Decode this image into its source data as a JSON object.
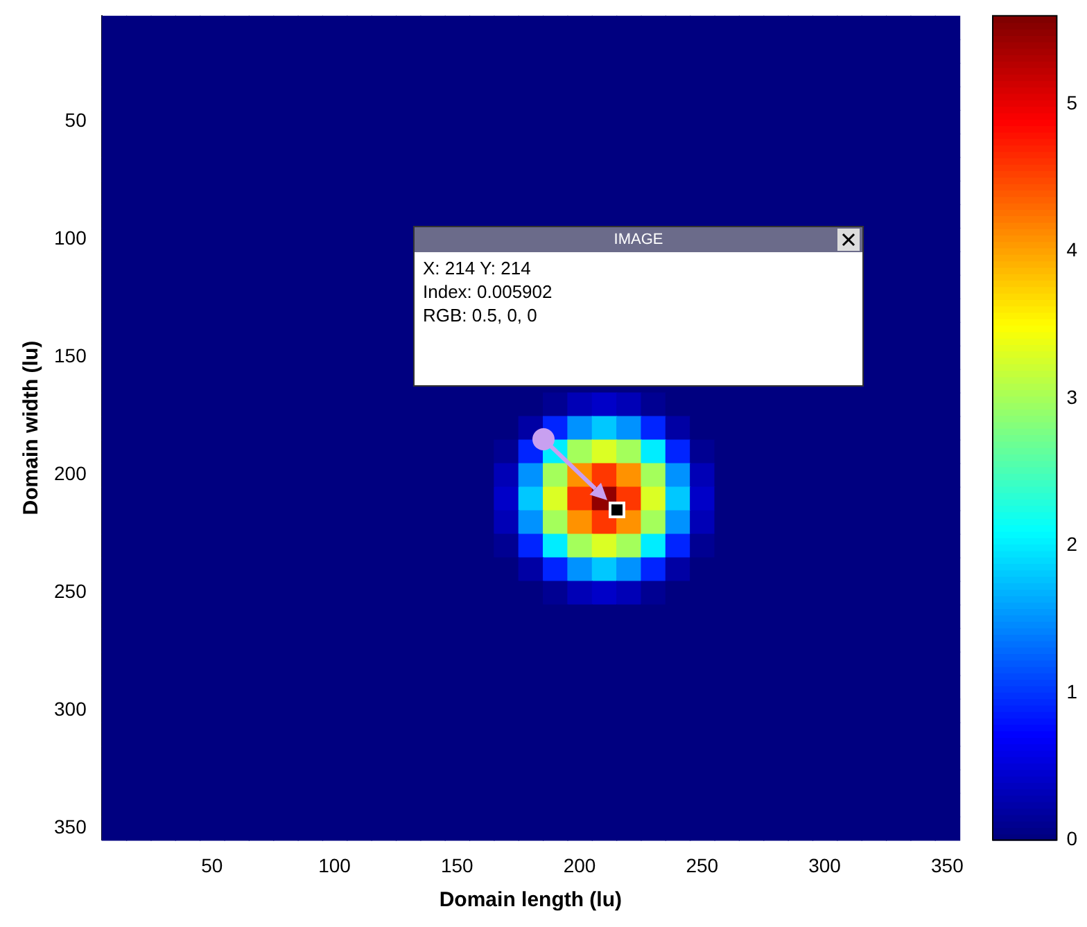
{
  "chart_data": {
    "type": "heatmap",
    "xlabel": "Domain length (lu)",
    "ylabel": "Domain width (lu)",
    "categories": [
      null,
      null,
      null,
      null,
      "50",
      null,
      null,
      null,
      null,
      "100",
      null,
      null,
      null,
      null,
      "150",
      null,
      null,
      null,
      null,
      "200",
      null,
      null,
      null,
      null,
      "250",
      null,
      null,
      null,
      null,
      "300",
      null,
      null,
      null,
      null,
      "350"
    ],
    "y_categories": [
      null,
      null,
      null,
      null,
      "50",
      null,
      null,
      null,
      null,
      "100",
      null,
      null,
      null,
      null,
      "150",
      null,
      null,
      null,
      null,
      "200",
      null,
      null,
      null,
      null,
      "250",
      null,
      null,
      null,
      null,
      "300",
      null,
      null,
      null,
      null,
      "350"
    ],
    "clim": [
      0,
      5.6
    ],
    "cticks": [
      0,
      1,
      2,
      3,
      4,
      5
    ],
    "cells": [
      [
        0,
        0,
        0,
        0,
        0,
        0,
        0,
        0,
        0,
        0,
        0,
        0,
        0,
        0,
        0,
        0,
        0,
        0,
        0,
        0,
        0,
        0,
        0,
        0,
        0,
        0,
        0,
        0,
        0,
        0,
        0,
        0,
        0,
        0,
        0
      ],
      [
        0,
        0,
        0,
        0,
        0,
        0,
        0,
        0,
        0,
        0,
        0,
        0,
        0,
        0,
        0,
        0,
        0,
        0,
        0,
        0,
        0,
        0,
        0,
        0,
        0,
        0,
        0,
        0,
        0,
        0,
        0,
        0,
        0,
        0,
        0
      ],
      [
        0,
        0,
        0,
        0,
        0,
        0,
        0,
        0,
        0,
        0,
        0,
        0,
        0,
        0,
        0,
        0,
        0,
        0,
        0,
        0,
        0,
        0,
        0,
        0,
        0,
        0,
        0,
        0,
        0,
        0,
        0,
        0,
        0,
        0,
        0
      ],
      [
        0,
        0,
        0,
        0,
        0,
        0,
        0,
        0,
        0,
        0,
        0,
        0,
        0,
        0,
        0,
        0,
        0,
        0,
        0,
        0,
        0,
        0,
        0,
        0,
        0,
        0,
        0,
        0,
        0,
        0,
        0,
        0,
        0,
        0,
        0
      ],
      [
        0,
        0,
        0,
        0,
        0,
        0,
        0,
        0,
        0,
        0,
        0,
        0,
        0,
        0,
        0,
        0,
        0,
        0,
        0,
        0,
        0,
        0,
        0,
        0,
        0,
        0,
        0,
        0,
        0,
        0,
        0,
        0,
        0,
        0,
        0
      ],
      [
        0,
        0,
        0,
        0,
        0,
        0,
        0,
        0,
        0,
        0,
        0,
        0,
        0,
        0,
        0,
        0,
        0,
        0,
        0,
        0,
        0,
        0,
        0,
        0,
        0,
        0,
        0,
        0,
        0,
        0,
        0,
        0,
        0,
        0,
        0
      ],
      [
        0,
        0,
        0,
        0,
        0,
        0,
        0,
        0,
        0,
        0,
        0,
        0,
        0,
        0,
        0,
        0,
        0,
        0,
        0,
        0,
        0,
        0,
        0,
        0,
        0,
        0,
        0,
        0,
        0,
        0,
        0,
        0,
        0,
        0,
        0
      ],
      [
        0,
        0,
        0,
        0,
        0,
        0,
        0,
        0,
        0,
        0,
        0,
        0,
        0,
        0,
        0,
        0,
        0,
        0,
        0,
        0,
        0,
        0,
        0,
        0,
        0,
        0,
        0,
        0,
        0,
        0,
        0,
        0,
        0,
        0,
        0
      ],
      [
        0,
        0,
        0,
        0,
        0,
        0,
        0,
        0,
        0,
        0,
        0,
        0,
        0,
        0,
        0,
        0,
        0,
        0,
        0,
        0,
        0,
        0,
        0,
        0,
        0,
        0,
        0,
        0,
        0,
        0,
        0,
        0,
        0,
        0,
        0
      ],
      [
        0,
        0,
        0,
        0,
        0,
        0,
        0,
        0,
        0,
        0,
        0,
        0,
        0,
        null,
        null,
        null,
        null,
        null,
        null,
        null,
        null,
        null,
        null,
        null,
        null,
        null,
        null,
        null,
        null,
        null,
        null,
        0,
        0,
        0,
        0
      ],
      [
        0,
        0,
        0,
        0,
        0,
        0,
        0,
        0,
        0,
        0,
        0,
        0,
        0,
        null,
        null,
        null,
        null,
        null,
        null,
        null,
        null,
        null,
        null,
        null,
        null,
        null,
        null,
        null,
        null,
        null,
        null,
        0,
        0,
        0,
        0
      ],
      [
        0,
        0,
        0,
        0,
        0,
        0,
        0,
        0,
        0,
        0,
        0,
        0,
        0,
        null,
        null,
        null,
        null,
        null,
        null,
        null,
        null,
        null,
        null,
        null,
        null,
        null,
        null,
        null,
        null,
        null,
        null,
        0,
        0,
        0,
        0
      ],
      [
        0,
        0,
        0,
        0,
        0,
        0,
        0,
        0,
        0,
        0,
        0,
        0,
        0,
        null,
        null,
        null,
        null,
        null,
        null,
        null,
        null,
        null,
        null,
        null,
        null,
        null,
        null,
        null,
        null,
        null,
        null,
        0,
        0,
        0,
        0
      ],
      [
        0,
        0,
        0,
        0,
        0,
        0,
        0,
        0,
        0,
        0,
        0,
        0,
        0,
        null,
        null,
        null,
        null,
        null,
        null,
        null,
        null,
        null,
        null,
        null,
        null,
        null,
        null,
        null,
        null,
        null,
        null,
        0,
        0,
        0,
        0
      ],
      [
        0,
        0,
        0,
        0,
        0,
        0,
        0,
        0,
        0,
        0,
        0,
        0,
        0,
        null,
        null,
        null,
        null,
        null,
        null,
        null,
        null,
        null,
        null,
        null,
        null,
        null,
        null,
        null,
        null,
        null,
        null,
        0,
        0,
        0,
        0
      ],
      [
        0,
        0,
        0,
        0,
        0,
        0,
        0,
        0,
        0,
        0,
        0,
        0,
        0,
        0,
        0,
        0,
        0,
        0,
        0,
        0,
        0,
        0,
        0,
        0,
        0,
        0,
        0,
        0,
        0,
        0,
        0,
        0,
        0,
        0,
        0
      ],
      [
        0,
        0,
        0,
        0,
        0,
        0,
        0,
        0,
        0,
        0,
        0,
        0,
        0,
        0,
        0,
        0,
        0,
        0,
        0.1,
        0.3,
        0.4,
        0.3,
        0.1,
        0,
        0,
        0,
        0,
        0,
        0,
        0,
        0,
        0,
        0,
        0,
        0
      ],
      [
        0,
        0,
        0,
        0,
        0,
        0,
        0,
        0,
        0,
        0,
        0,
        0,
        0,
        0,
        0,
        0,
        0,
        0.2,
        0.9,
        1.5,
        1.8,
        1.5,
        0.9,
        0.2,
        0,
        0,
        0,
        0,
        0,
        0,
        0,
        0,
        0,
        0,
        0
      ],
      [
        0,
        0,
        0,
        0,
        0,
        0,
        0,
        0,
        0,
        0,
        0,
        0,
        0,
        0,
        0,
        0,
        0.1,
        0.9,
        2.0,
        3.0,
        3.3,
        3.0,
        2.0,
        0.9,
        0.1,
        0,
        0,
        0,
        0,
        0,
        0,
        0,
        0,
        0,
        0
      ],
      [
        0,
        0,
        0,
        0,
        0,
        0,
        0,
        0,
        0,
        0,
        0,
        0,
        0,
        0,
        0,
        0,
        0.3,
        1.5,
        3.0,
        4.1,
        4.6,
        4.1,
        3.0,
        1.5,
        0.3,
        0,
        0,
        0,
        0,
        0,
        0,
        0,
        0,
        0,
        0
      ],
      [
        0,
        0,
        0,
        0,
        0,
        0,
        0,
        0,
        0,
        0,
        0,
        0,
        0,
        0,
        0,
        0,
        0.4,
        1.8,
        3.3,
        4.6,
        5.5,
        4.6,
        3.3,
        1.8,
        0.4,
        0,
        0,
        0,
        0,
        0,
        0,
        0,
        0,
        0,
        0
      ],
      [
        0,
        0,
        0,
        0,
        0,
        0,
        0,
        0,
        0,
        0,
        0,
        0,
        0,
        0,
        0,
        0,
        0.3,
        1.5,
        3.0,
        4.1,
        4.6,
        4.1,
        3.0,
        1.5,
        0.3,
        0,
        0,
        0,
        0,
        0,
        0,
        0,
        0,
        0,
        0
      ],
      [
        0,
        0,
        0,
        0,
        0,
        0,
        0,
        0,
        0,
        0,
        0,
        0,
        0,
        0,
        0,
        0,
        0.1,
        0.9,
        2.0,
        3.0,
        3.3,
        3.0,
        2.0,
        0.9,
        0.1,
        0,
        0,
        0,
        0,
        0,
        0,
        0,
        0,
        0,
        0
      ],
      [
        0,
        0,
        0,
        0,
        0,
        0,
        0,
        0,
        0,
        0,
        0,
        0,
        0,
        0,
        0,
        0,
        0,
        0.2,
        0.9,
        1.5,
        1.8,
        1.5,
        0.9,
        0.2,
        0,
        0,
        0,
        0,
        0,
        0,
        0,
        0,
        0,
        0,
        0
      ],
      [
        0,
        0,
        0,
        0,
        0,
        0,
        0,
        0,
        0,
        0,
        0,
        0,
        0,
        0,
        0,
        0,
        0,
        0,
        0.1,
        0.3,
        0.4,
        0.3,
        0.1,
        0,
        0,
        0,
        0,
        0,
        0,
        0,
        0,
        0,
        0,
        0,
        0
      ],
      [
        0,
        0,
        0,
        0,
        0,
        0,
        0,
        0,
        0,
        0,
        0,
        0,
        0,
        0,
        0,
        0,
        0,
        0,
        0,
        0,
        0,
        0,
        0,
        0,
        0,
        0,
        0,
        0,
        0,
        0,
        0,
        0,
        0,
        0,
        0
      ],
      [
        0,
        0,
        0,
        0,
        0,
        0,
        0,
        0,
        0,
        0,
        0,
        0,
        0,
        0,
        0,
        0,
        0,
        0,
        0,
        0,
        0,
        0,
        0,
        0,
        0,
        0,
        0,
        0,
        0,
        0,
        0,
        0,
        0,
        0,
        0
      ],
      [
        0,
        0,
        0,
        0,
        0,
        0,
        0,
        0,
        0,
        0,
        0,
        0,
        0,
        0,
        0,
        0,
        0,
        0,
        0,
        0,
        0,
        0,
        0,
        0,
        0,
        0,
        0,
        0,
        0,
        0,
        0,
        0,
        0,
        0,
        0
      ],
      [
        0,
        0,
        0,
        0,
        0,
        0,
        0,
        0,
        0,
        0,
        0,
        0,
        0,
        0,
        0,
        0,
        0,
        0,
        0,
        0,
        0,
        0,
        0,
        0,
        0,
        0,
        0,
        0,
        0,
        0,
        0,
        0,
        0,
        0,
        0
      ],
      [
        0,
        0,
        0,
        0,
        0,
        0,
        0,
        0,
        0,
        0,
        0,
        0,
        0,
        0,
        0,
        0,
        0,
        0,
        0,
        0,
        0,
        0,
        0,
        0,
        0,
        0,
        0,
        0,
        0,
        0,
        0,
        0,
        0,
        0,
        0
      ],
      [
        0,
        0,
        0,
        0,
        0,
        0,
        0,
        0,
        0,
        0,
        0,
        0,
        0,
        0,
        0,
        0,
        0,
        0,
        0,
        0,
        0,
        0,
        0,
        0,
        0,
        0,
        0,
        0,
        0,
        0,
        0,
        0,
        0,
        0,
        0
      ],
      [
        0,
        0,
        0,
        0,
        0,
        0,
        0,
        0,
        0,
        0,
        0,
        0,
        0,
        0,
        0,
        0,
        0,
        0,
        0,
        0,
        0,
        0,
        0,
        0,
        0,
        0,
        0,
        0,
        0,
        0,
        0,
        0,
        0,
        0,
        0
      ],
      [
        0,
        0,
        0,
        0,
        0,
        0,
        0,
        0,
        0,
        0,
        0,
        0,
        0,
        0,
        0,
        0,
        0,
        0,
        0,
        0,
        0,
        0,
        0,
        0,
        0,
        0,
        0,
        0,
        0,
        0,
        0,
        0,
        0,
        0,
        0
      ],
      [
        0,
        0,
        0,
        0,
        0,
        0,
        0,
        0,
        0,
        0,
        0,
        0,
        0,
        0,
        0,
        0,
        0,
        0,
        0,
        0,
        0,
        0,
        0,
        0,
        0,
        0,
        0,
        0,
        0,
        0,
        0,
        0,
        0,
        0,
        0
      ],
      [
        0,
        0,
        0,
        0,
        0,
        0,
        0,
        0,
        0,
        0,
        0,
        0,
        0,
        0,
        0,
        0,
        0,
        0,
        0,
        0,
        0,
        0,
        0,
        0,
        0,
        0,
        0,
        0,
        0,
        0,
        0,
        0,
        0,
        0,
        0
      ]
    ],
    "annotations": [
      "IMAGE",
      "X: 214 Y: 214",
      "Index: 0.005902",
      "RGB: 0.5, 0, 0"
    ]
  }
}
